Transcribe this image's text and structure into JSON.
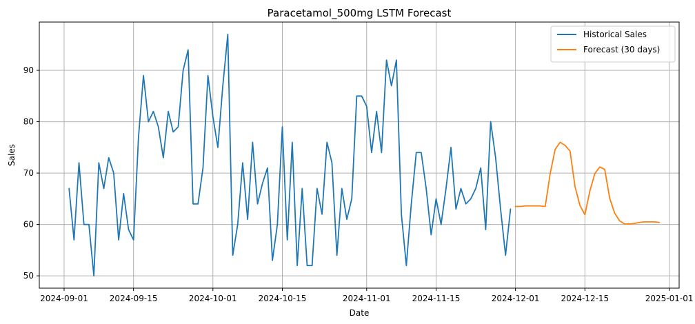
{
  "chart_data": {
    "type": "line",
    "title": "Paracetamol_500mg LSTM Forecast",
    "xlabel": "Date",
    "ylabel": "Sales",
    "x_range": [
      "2024-08-27",
      "2025-01-03"
    ],
    "ylim": [
      47.6,
      99.4
    ],
    "grid": true,
    "legend_position": "top-right",
    "x_ticks": [
      "2024-09-01",
      "2024-09-15",
      "2024-10-01",
      "2024-10-15",
      "2024-11-01",
      "2024-11-15",
      "2024-12-01",
      "2024-12-15",
      "2025-01-01"
    ],
    "x_tick_labels": [
      "2024-09-01",
      "2024-09-15",
      "2024-10-01",
      "2024-10-15",
      "2024-11-01",
      "2024-11-15",
      "2024-12-01",
      "2024-12-15",
      "2025-01-01"
    ],
    "y_ticks": [
      50,
      60,
      70,
      80,
      90
    ],
    "y_tick_labels": [
      "50",
      "60",
      "70",
      "80",
      "90"
    ],
    "series": [
      {
        "name": "Historical Sales",
        "color": "#1f77b4",
        "start_date": "2024-09-02",
        "values": [
          67,
          57,
          72,
          60,
          60,
          50,
          72,
          67,
          73,
          70,
          57,
          66,
          59,
          57,
          77,
          89,
          80,
          82,
          79,
          73,
          82,
          78,
          79,
          90,
          94,
          64,
          64,
          71,
          89,
          81,
          75,
          87,
          97,
          54,
          60,
          72,
          61,
          76,
          64,
          68,
          71,
          53,
          60,
          79,
          57,
          76,
          52,
          67,
          52,
          52,
          67,
          62,
          76,
          72,
          54,
          67,
          61,
          65,
          85,
          85,
          83,
          74,
          82,
          74,
          92,
          87,
          92,
          62,
          52,
          64,
          74,
          74,
          67,
          58,
          65,
          60,
          67,
          75,
          63,
          67,
          64,
          65,
          67,
          71,
          59,
          80,
          73,
          63,
          54,
          63
        ]
      },
      {
        "name": "Forecast (30 days)",
        "color": "#ff7f0e",
        "start_date": "2024-12-01",
        "values": [
          63.5,
          63.5,
          63.6,
          63.6,
          63.6,
          63.6,
          63.5,
          69.9,
          74.6,
          76.0,
          75.4,
          74.3,
          67.4,
          63.7,
          61.9,
          66.5,
          69.9,
          71.2,
          70.7,
          65.1,
          62.2,
          60.7,
          60.1,
          60.1,
          60.2,
          60.4,
          60.5,
          60.5,
          60.5,
          60.4
        ]
      }
    ]
  }
}
